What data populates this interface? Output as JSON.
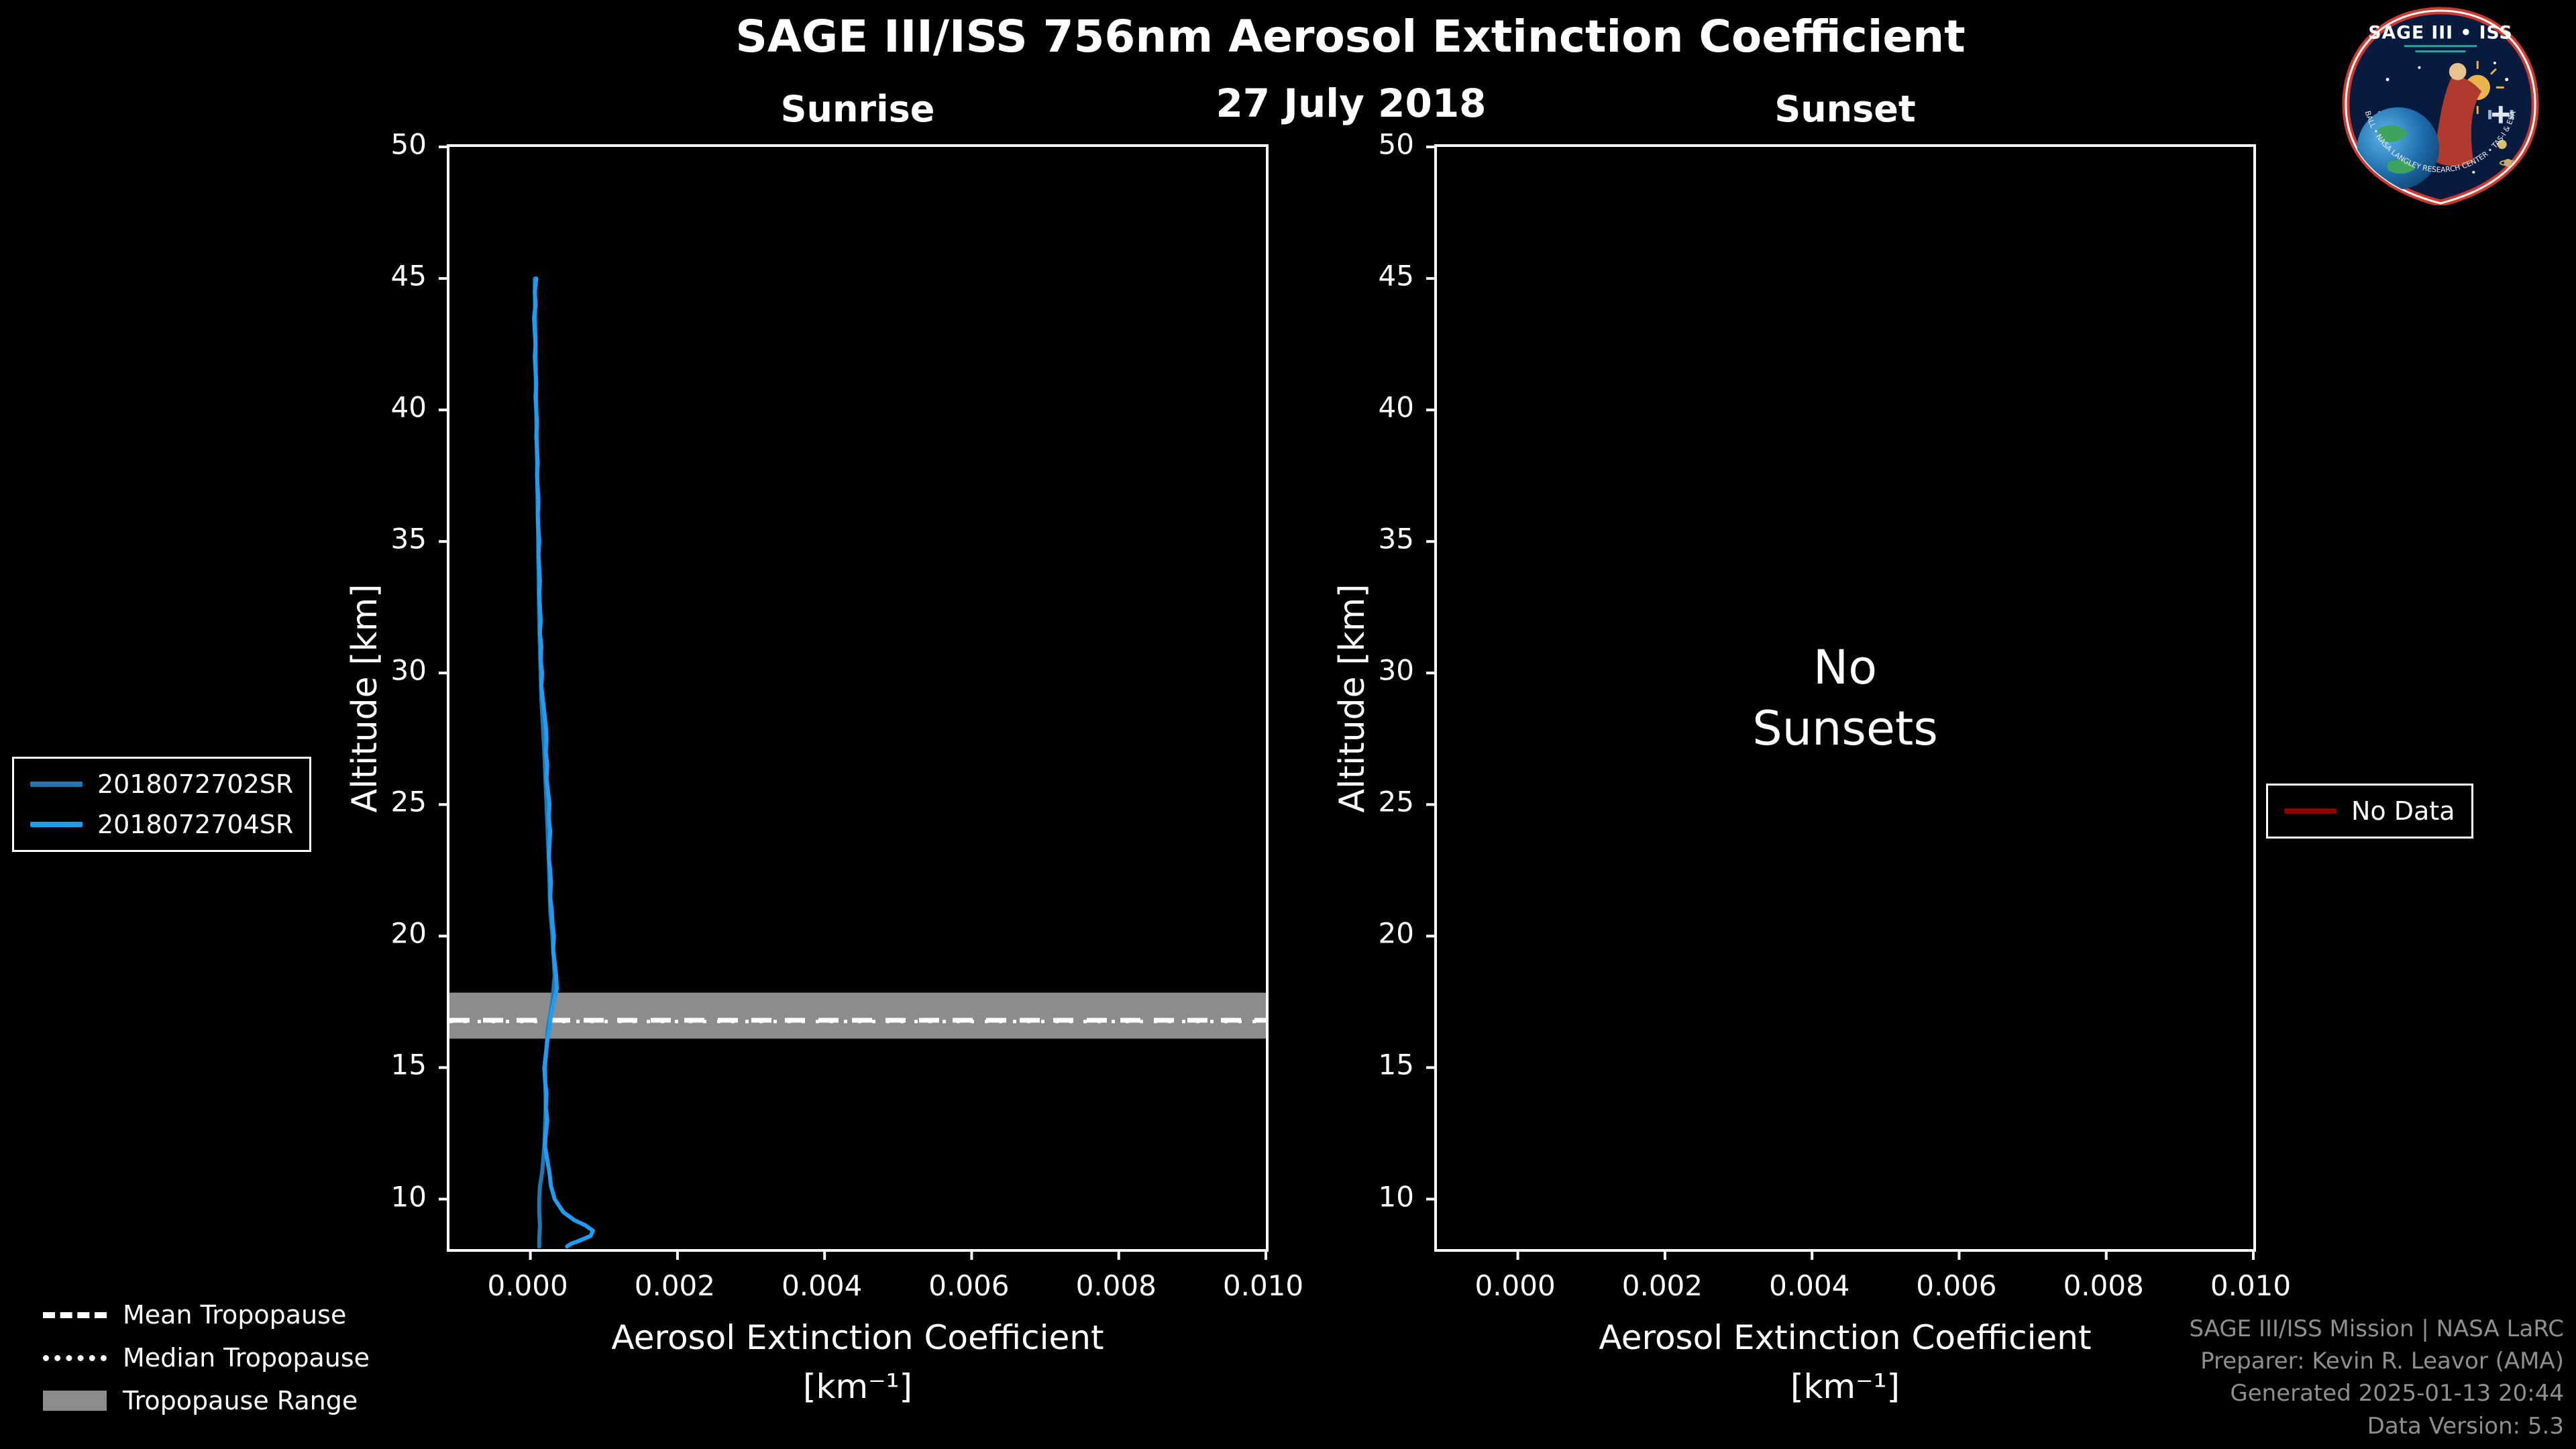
{
  "colors": {
    "background": "#000000",
    "axis": "#ffffff",
    "tropopause_band": "#8c8c8c"
  },
  "credits": {
    "lines": [
      "SAGE III/ISS Mission | NASA LaRC",
      "Preparer: Kevin R. Leavor (AMA)",
      "Generated 2025-01-13 20:44",
      "Data Version: 5.3"
    ]
  },
  "tropopause_legend": {
    "items": [
      {
        "label": "Mean Tropopause",
        "style": "dashed",
        "color": "#ffffff"
      },
      {
        "label": "Median Tropopause",
        "style": "dotted",
        "color": "#ffffff"
      },
      {
        "label": "Tropopause Range",
        "style": "band",
        "color": "#8c8c8c"
      }
    ]
  },
  "logo": {
    "title": "SAGE III • ISS",
    "footer": "BALL • NASA LANGLEY RESEARCH CENTER • TAS-I & ESA"
  },
  "chart_data": {
    "type": "line",
    "title": "SAGE III/ISS 756nm Aerosol Extinction Coefficient",
    "subtitle": "27 July 2018",
    "axes": {
      "ylabel": "Altitude [km]",
      "xlabel_line1": "Aerosol Extinction Coefficient",
      "xlabel_line2": "[km⁻¹]",
      "xlim": [
        -0.0011,
        0.01
      ],
      "ylim": [
        8.1,
        50
      ],
      "xticks": [
        0,
        0.002,
        0.004,
        0.006,
        0.008,
        0.01
      ],
      "xtick_labels": [
        "0.000",
        "0.002",
        "0.004",
        "0.006",
        "0.008",
        "0.010"
      ],
      "yticks": [
        10,
        15,
        20,
        25,
        30,
        35,
        40,
        45,
        50
      ],
      "ytick_labels": [
        "10",
        "15",
        "20",
        "25",
        "30",
        "35",
        "40",
        "45",
        "50"
      ],
      "grid": false
    },
    "panels": [
      {
        "title": "Sunrise",
        "tropopause": {
          "mean": 16.8,
          "median": 16.75,
          "range": [
            16.1,
            17.85
          ]
        },
        "series": [
          {
            "name": "2018072702SR",
            "color": "#1f77b4",
            "points": [
              [
                6e-05,
                45
              ],
              [
                7e-05,
                42
              ],
              [
                8e-05,
                40
              ],
              [
                0.0001,
                36
              ],
              [
                0.00012,
                32
              ],
              [
                0.00015,
                29
              ],
              [
                0.00019,
                27
              ],
              [
                0.00022,
                25
              ],
              [
                0.00025,
                23
              ],
              [
                0.00027,
                21
              ],
              [
                0.0003,
                20
              ],
              [
                0.00033,
                18.5
              ],
              [
                0.0003,
                17.5
              ],
              [
                0.00024,
                16.5
              ],
              [
                0.0002,
                15
              ],
              [
                0.00021,
                13.5
              ],
              [
                0.00019,
                12
              ],
              [
                0.00016,
                11
              ],
              [
                0.00013,
                10.5
              ],
              [
                0.00012,
                10
              ],
              [
                0.00012,
                9.5
              ],
              [
                0.00013,
                9
              ],
              [
                0.00012,
                8.5
              ],
              [
                0.00012,
                8.2
              ]
            ]
          },
          {
            "name": "2018072704SR",
            "color": "#1e9df2",
            "points": [
              [
                8e-05,
                45
              ],
              [
                6e-05,
                44.5
              ],
              [
                7e-05,
                44
              ],
              [
                5e-05,
                43.5
              ],
              [
                6e-05,
                43
              ],
              [
                7e-05,
                42.5
              ],
              [
                6e-05,
                42
              ],
              [
                7e-05,
                41.5
              ],
              [
                8e-05,
                41
              ],
              [
                7e-05,
                40.5
              ],
              [
                8e-05,
                40
              ],
              [
                9e-05,
                39.5
              ],
              [
                8e-05,
                39
              ],
              [
                9e-05,
                38.5
              ],
              [
                0.0001,
                38
              ],
              [
                9e-05,
                37.5
              ],
              [
                0.0001,
                37
              ],
              [
                0.00011,
                36.5
              ],
              [
                0.0001,
                36
              ],
              [
                0.00011,
                35.5
              ],
              [
                0.00012,
                35
              ],
              [
                0.00011,
                34.5
              ],
              [
                0.00012,
                34
              ],
              [
                0.00013,
                33.5
              ],
              [
                0.00012,
                33
              ],
              [
                0.00013,
                32.5
              ],
              [
                0.00014,
                32
              ],
              [
                0.00013,
                31.5
              ],
              [
                0.00015,
                31
              ],
              [
                0.00014,
                30.5
              ],
              [
                0.00016,
                30
              ],
              [
                0.00015,
                29.5
              ],
              [
                0.00017,
                29
              ],
              [
                0.00019,
                28.5
              ],
              [
                0.00021,
                28
              ],
              [
                0.00022,
                27.5
              ],
              [
                0.00021,
                27
              ],
              [
                0.00023,
                26.5
              ],
              [
                0.00022,
                26
              ],
              [
                0.00024,
                25.5
              ],
              [
                0.00026,
                25
              ],
              [
                0.00025,
                24.5
              ],
              [
                0.00027,
                24
              ],
              [
                0.00026,
                23.5
              ],
              [
                0.00025,
                23
              ],
              [
                0.00027,
                22.5
              ],
              [
                0.00028,
                22
              ],
              [
                0.00027,
                21.5
              ],
              [
                0.00029,
                21
              ],
              [
                0.0003,
                20.5
              ],
              [
                0.00032,
                20
              ],
              [
                0.00031,
                19.5
              ],
              [
                0.00033,
                19
              ],
              [
                0.00035,
                18.5
              ],
              [
                0.00036,
                18
              ],
              [
                0.00032,
                17.5
              ],
              [
                0.00028,
                17
              ],
              [
                0.00026,
                16.5
              ],
              [
                0.00023,
                16
              ],
              [
                0.00021,
                15.5
              ],
              [
                0.00019,
                15
              ],
              [
                0.0002,
                14.5
              ],
              [
                0.00022,
                14
              ],
              [
                0.00021,
                13.5
              ],
              [
                0.00023,
                13
              ],
              [
                0.00021,
                12.5
              ],
              [
                0.0002,
                12
              ],
              [
                0.00023,
                11.5
              ],
              [
                0.00026,
                11
              ],
              [
                0.00028,
                10.5
              ],
              [
                0.00033,
                10
              ],
              [
                0.00045,
                9.5
              ],
              [
                0.0006,
                9.2
              ],
              [
                0.00075,
                9
              ],
              [
                0.00085,
                8.8
              ],
              [
                0.00082,
                8.6
              ],
              [
                0.00065,
                8.4
              ],
              [
                0.00055,
                8.3
              ],
              [
                0.0005,
                8.2
              ]
            ]
          }
        ]
      },
      {
        "title": "Sunset",
        "annotation": "No\nSunsets",
        "series": [],
        "no_data_legend": {
          "label": "No Data",
          "color": "#8b0000"
        }
      }
    ]
  }
}
